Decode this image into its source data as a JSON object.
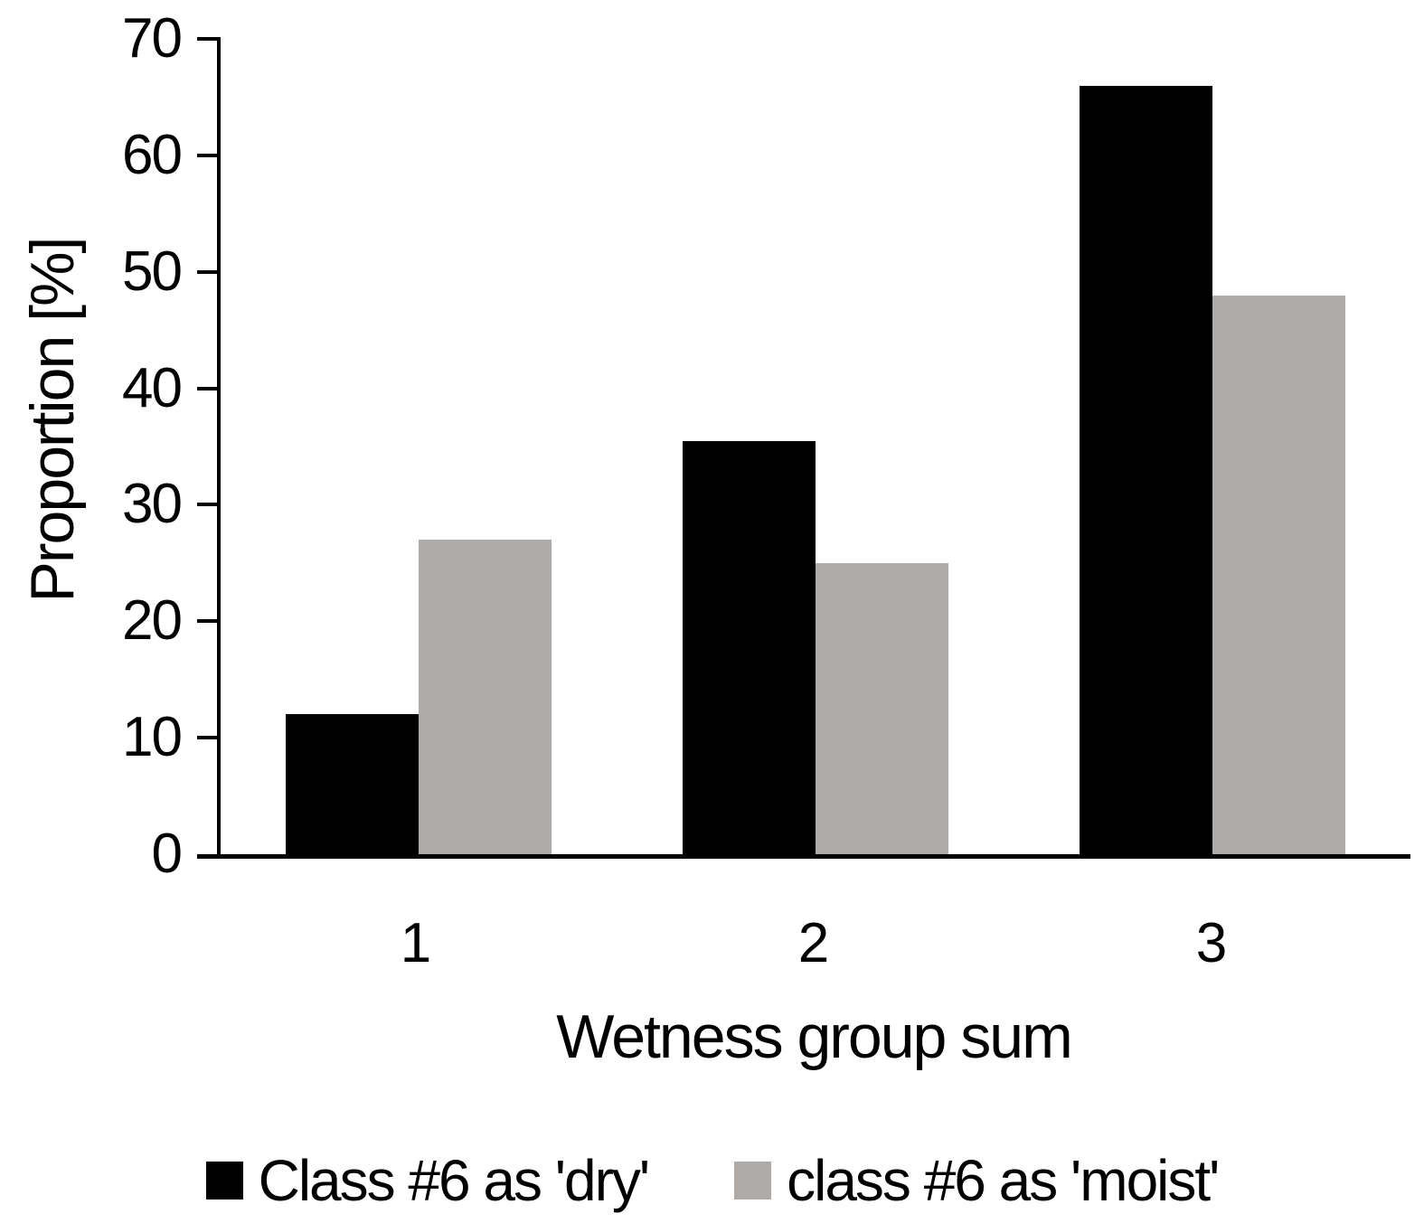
{
  "figure": {
    "background": "#ffffff",
    "text_color": "#000000"
  },
  "chart_data": {
    "type": "bar",
    "title": "",
    "xlabel": "Wetness group sum",
    "ylabel": "Proportion [%]",
    "categories": [
      "1",
      "2",
      "3"
    ],
    "series": [
      {
        "name": "Class #6 as 'dry'",
        "color": "#000000",
        "values": [
          12,
          35.5,
          66
        ]
      },
      {
        "name": "class #6 as 'moist'",
        "color": "#ADAAA7",
        "values": [
          27,
          25,
          48
        ]
      }
    ],
    "ylim": [
      0,
      70
    ],
    "yticks": [
      0,
      10,
      20,
      30,
      40,
      50,
      60,
      70
    ],
    "grid": false,
    "legend_position": "bottom"
  }
}
